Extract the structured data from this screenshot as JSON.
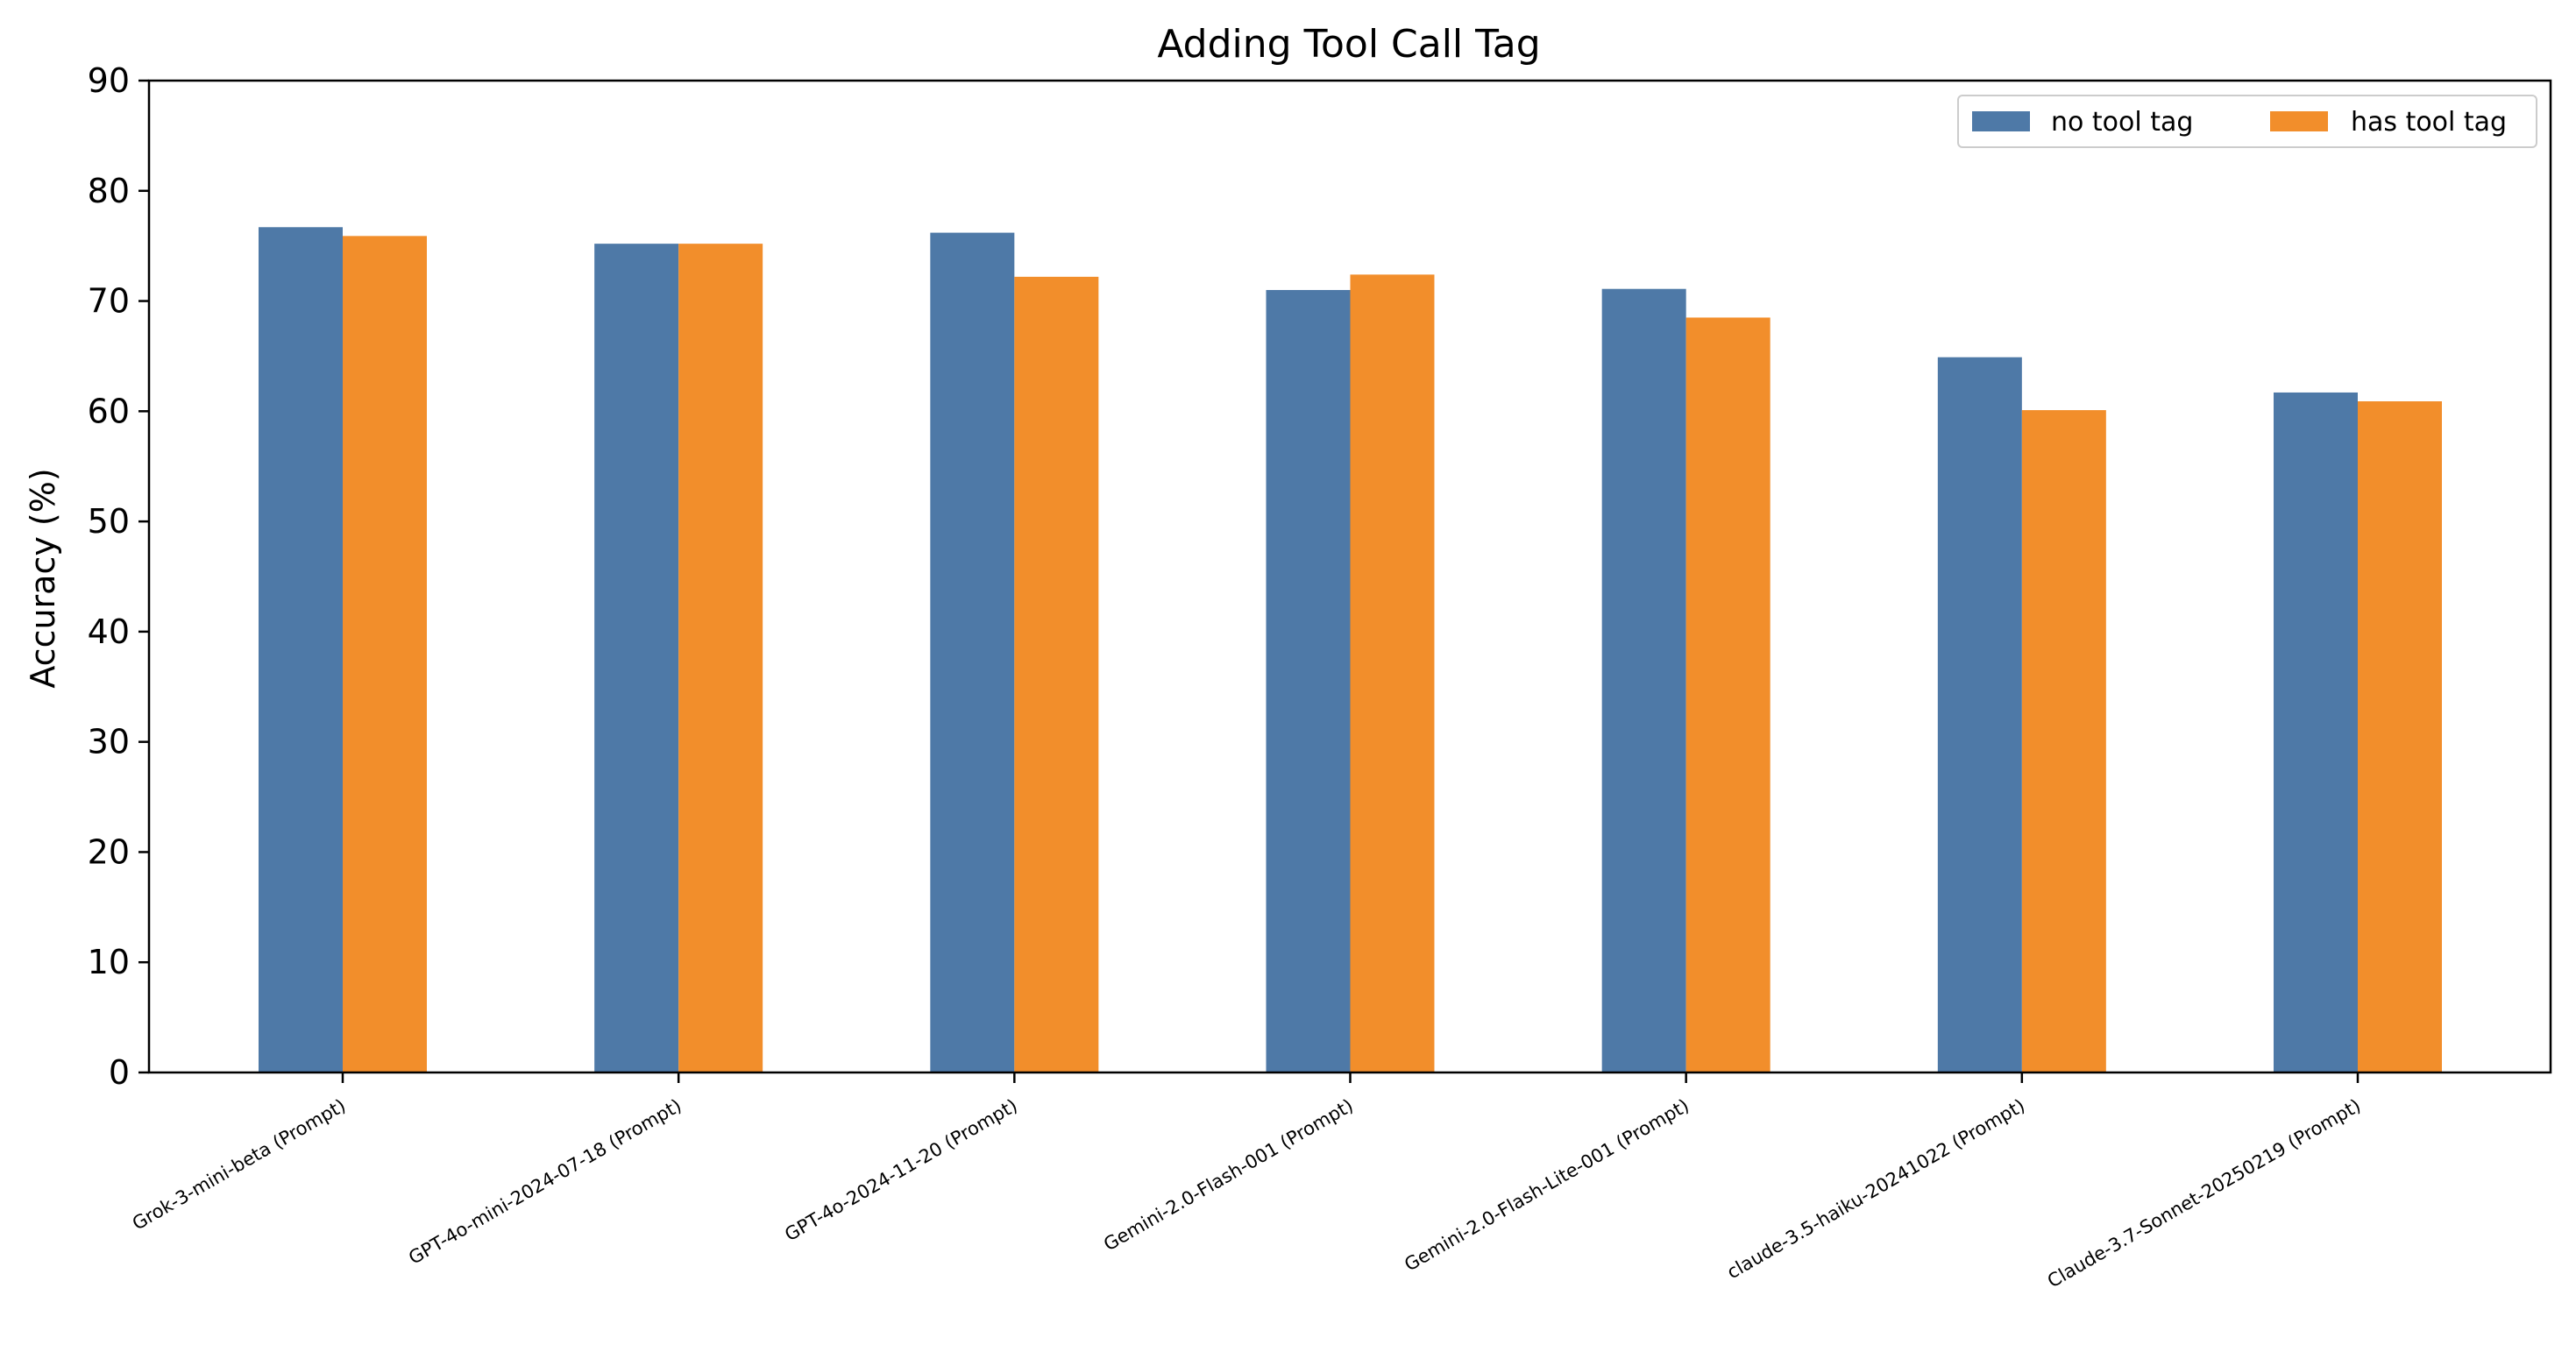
{
  "chart_data": {
    "type": "bar",
    "title": "Adding Tool Call Tag",
    "xlabel": "",
    "ylabel": "Accuracy (%)",
    "ylim": [
      0,
      90
    ],
    "yticks": [
      0,
      10,
      20,
      30,
      40,
      50,
      60,
      70,
      80,
      90
    ],
    "categories": [
      "Grok-3-mini-beta (Prompt)",
      "GPT-4o-mini-2024-07-18 (Prompt)",
      "GPT-4o-2024-11-20 (Prompt)",
      "Gemini-2.0-Flash-001 (Prompt)",
      "Gemini-2.0-Flash-Lite-001 (Prompt)",
      "claude-3.5-haiku-20241022 (Prompt)",
      "Claude-3.7-Sonnet-20250219 (Prompt)"
    ],
    "series": [
      {
        "name": "no tool tag",
        "color": "#4e79a7",
        "values": [
          76.7,
          75.2,
          76.2,
          71.0,
          71.1,
          64.9,
          61.7
        ]
      },
      {
        "name": "has tool tag",
        "color": "#f28e2b",
        "values": [
          75.9,
          75.2,
          72.2,
          72.4,
          68.5,
          60.1,
          60.9
        ]
      }
    ],
    "grid": false,
    "legend_position": "top-right"
  }
}
